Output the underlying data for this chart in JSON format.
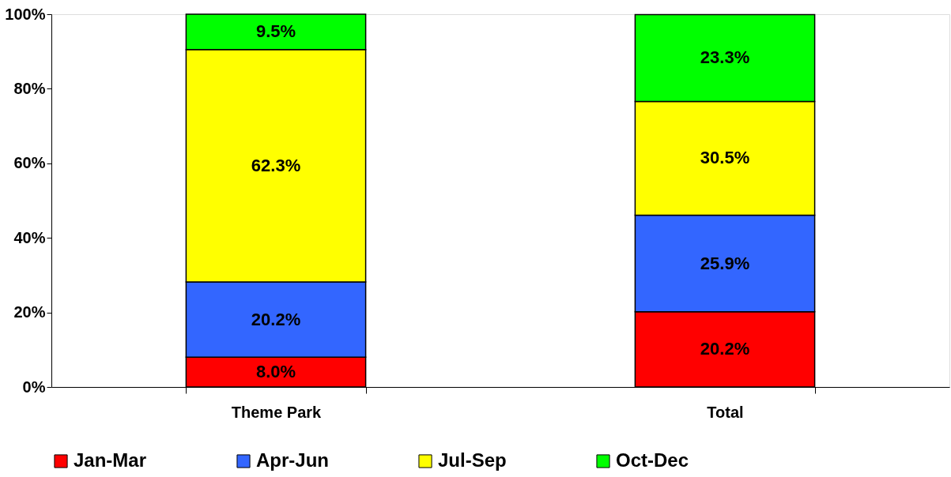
{
  "chart_data": {
    "type": "bar",
    "stacked": true,
    "categories": [
      "Theme Park",
      "Total"
    ],
    "series": [
      {
        "name": "Jan-Mar",
        "color": "#ff0000",
        "values": [
          8.0,
          20.2
        ],
        "value_labels": [
          "8.0%",
          "20.2%"
        ]
      },
      {
        "name": "Apr-Jun",
        "color": "#3366ff",
        "values": [
          20.2,
          25.9
        ],
        "value_labels": [
          "20.2%",
          "25.9%"
        ]
      },
      {
        "name": "Jul-Sep",
        "color": "#ffff00",
        "values": [
          62.3,
          30.5
        ],
        "value_labels": [
          "62.3%",
          "30.5%"
        ]
      },
      {
        "name": "Oct-Dec",
        "color": "#00ff00",
        "values": [
          9.5,
          23.3
        ],
        "value_labels": [
          "9.5%",
          "23.3%"
        ]
      }
    ],
    "ylim": [
      0,
      100
    ],
    "yticks": [
      {
        "value": 0,
        "label": "0%"
      },
      {
        "value": 20,
        "label": "20%"
      },
      {
        "value": 40,
        "label": "40%"
      },
      {
        "value": 60,
        "label": "60%"
      },
      {
        "value": 80,
        "label": "80%"
      },
      {
        "value": 100,
        "label": "100%"
      }
    ],
    "grid": false,
    "legend": "bottom"
  }
}
